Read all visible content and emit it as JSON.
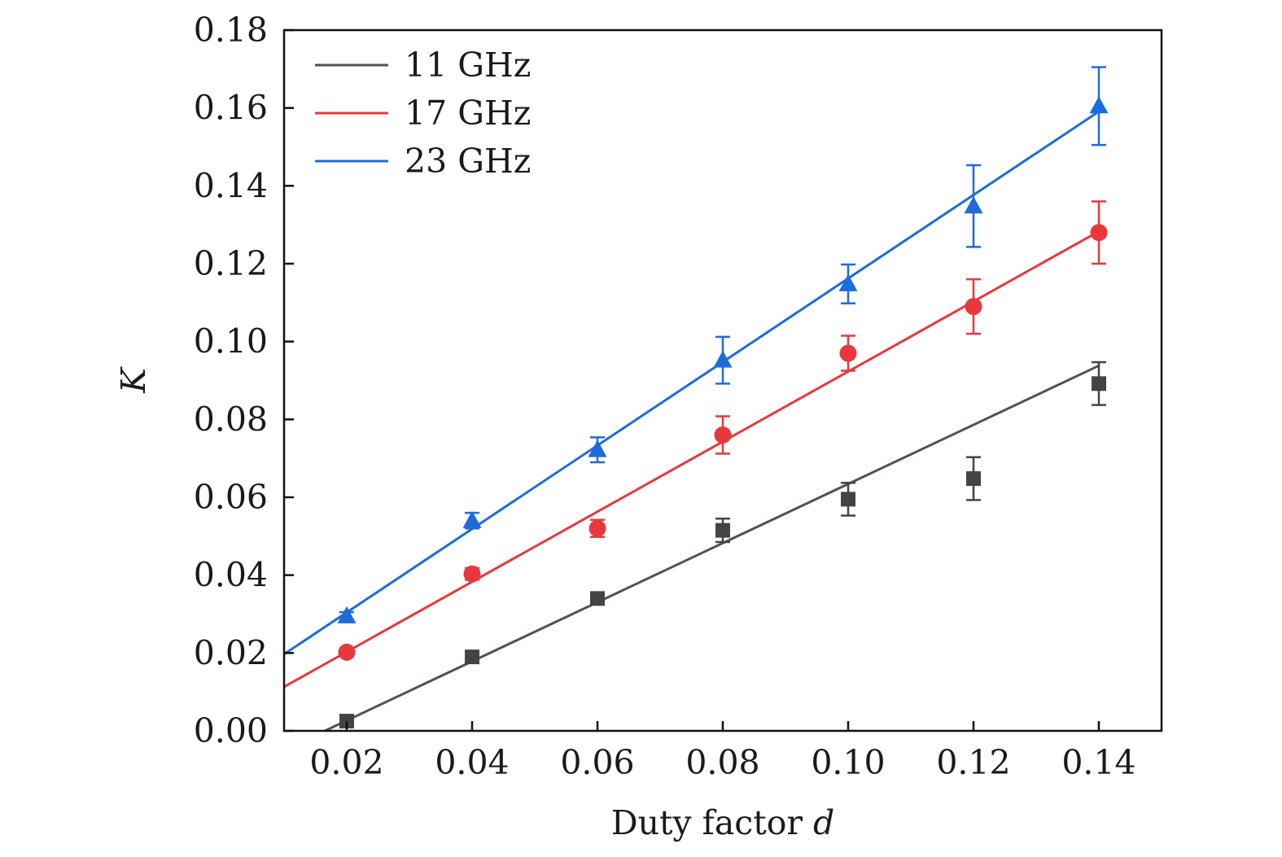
{
  "chart_data": {
    "type": "scatter",
    "xlabel": "Duty factor",
    "xlabel_var": "d",
    "ylabel": "K",
    "xlim": [
      0.01,
      0.15
    ],
    "ylim": [
      0,
      0.18
    ],
    "xticks": [
      "0.02",
      "0.04",
      "0.06",
      "0.08",
      "0.10",
      "0.12",
      "0.14"
    ],
    "yticks": [
      "0.00",
      "0.02",
      "0.04",
      "0.06",
      "0.08",
      "0.10",
      "0.12",
      "0.14",
      "0.16",
      "0.18"
    ],
    "grid": false,
    "legend_position": "top-left",
    "series": [
      {
        "name": "11 GHz",
        "color": "#444444",
        "line_color": "#5a4e4e",
        "marker": "square",
        "x": [
          0.02,
          0.04,
          0.06,
          0.08,
          0.1,
          0.12,
          0.14
        ],
        "y": [
          0.0025,
          0.019,
          0.034,
          0.0515,
          0.0595,
          0.0648,
          0.0892
        ],
        "err": [
          0.0008,
          0.001,
          0.0012,
          0.003,
          0.0042,
          0.0055,
          0.0055
        ],
        "fit": {
          "x": [
            0.0165,
            0.14
          ],
          "y": [
            0.0,
            0.0938
          ]
        }
      },
      {
        "name": "17 GHz",
        "color": "#e8383d",
        "line_color": "#e8383d",
        "marker": "circle",
        "x": [
          0.02,
          0.04,
          0.06,
          0.08,
          0.1,
          0.12,
          0.14
        ],
        "y": [
          0.0202,
          0.0403,
          0.052,
          0.076,
          0.097,
          0.109,
          0.128
        ],
        "err": [
          0.001,
          0.0015,
          0.0022,
          0.0048,
          0.0045,
          0.007,
          0.008
        ],
        "fit": {
          "x": [
            0.01,
            0.14
          ],
          "y": [
            0.0113,
            0.1283
          ]
        }
      },
      {
        "name": "23 GHz",
        "color": "#1e6bdc",
        "line_color": "#1e6bdc",
        "marker": "triangle",
        "x": [
          0.02,
          0.04,
          0.06,
          0.08,
          0.1,
          0.12,
          0.14
        ],
        "y": [
          0.0295,
          0.054,
          0.0722,
          0.0952,
          0.1148,
          0.1348,
          0.1605
        ],
        "err": [
          0.001,
          0.002,
          0.0032,
          0.006,
          0.005,
          0.0105,
          0.01
        ],
        "fit": {
          "x": [
            0.01,
            0.14
          ],
          "y": [
            0.0197,
            0.1591
          ]
        }
      }
    ]
  }
}
